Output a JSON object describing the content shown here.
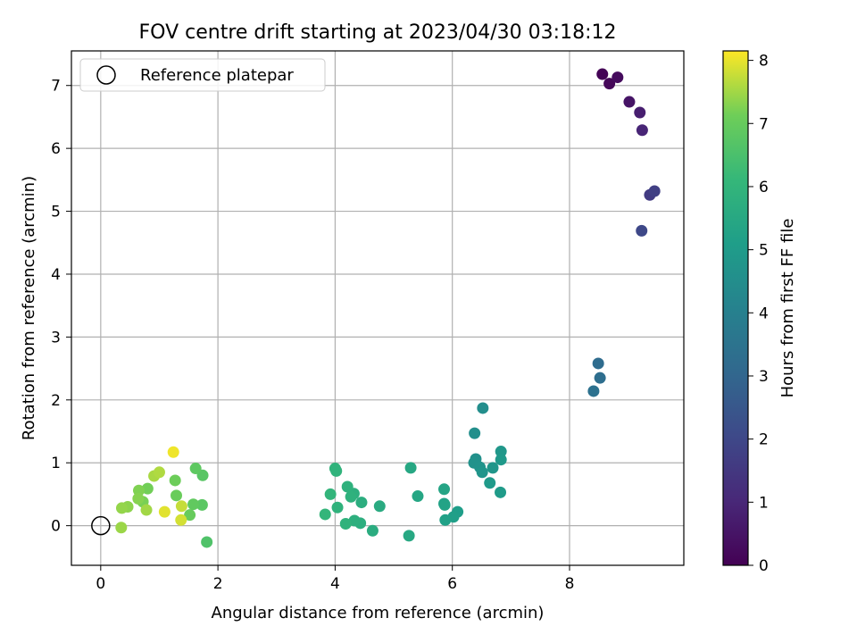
{
  "chart_data": {
    "type": "scatter",
    "title": "FOV centre drift starting at 2023/04/30 03:18:12",
    "xlabel": "Angular distance from reference (arcmin)",
    "ylabel": "Rotation from reference (arcmin)",
    "xlim": [
      -0.5,
      9.95
    ],
    "ylim": [
      -0.63,
      7.55
    ],
    "xticks": [
      0,
      2,
      4,
      6,
      8
    ],
    "yticks": [
      0,
      1,
      2,
      3,
      4,
      5,
      6,
      7
    ],
    "grid": true,
    "legend": {
      "placement": "top-left",
      "entries": [
        "Reference platepar"
      ]
    },
    "reference_point": {
      "x": 0,
      "y": 0,
      "label": "Reference platepar"
    },
    "colorbar": {
      "label": "Hours from first FF file",
      "colormap": "viridis",
      "range": [
        0,
        8.15
      ],
      "ticks": [
        0,
        1,
        2,
        3,
        4,
        5,
        6,
        7,
        8
      ]
    },
    "points": [
      {
        "x": 8.56,
        "y": 7.18,
        "t": 0.05
      },
      {
        "x": 8.68,
        "y": 7.03,
        "t": 0.15
      },
      {
        "x": 8.82,
        "y": 7.13,
        "t": 0.25
      },
      {
        "x": 9.02,
        "y": 6.74,
        "t": 0.5
      },
      {
        "x": 9.2,
        "y": 6.57,
        "t": 0.75
      },
      {
        "x": 9.24,
        "y": 6.29,
        "t": 0.95
      },
      {
        "x": 9.37,
        "y": 5.26,
        "t": 1.6
      },
      {
        "x": 9.45,
        "y": 5.32,
        "t": 1.75
      },
      {
        "x": 9.23,
        "y": 4.69,
        "t": 2.0
      },
      {
        "x": 8.49,
        "y": 2.58,
        "t": 3.2
      },
      {
        "x": 8.52,
        "y": 2.35,
        "t": 3.3
      },
      {
        "x": 8.41,
        "y": 2.14,
        "t": 3.4
      },
      {
        "x": 6.52,
        "y": 1.87,
        "t": 4.5
      },
      {
        "x": 6.38,
        "y": 1.47,
        "t": 4.55
      },
      {
        "x": 6.4,
        "y": 1.06,
        "t": 4.6
      },
      {
        "x": 6.37,
        "y": 1.0,
        "t": 4.65
      },
      {
        "x": 6.47,
        "y": 0.93,
        "t": 4.7
      },
      {
        "x": 6.51,
        "y": 0.85,
        "t": 4.75
      },
      {
        "x": 6.69,
        "y": 0.92,
        "t": 4.8
      },
      {
        "x": 6.83,
        "y": 1.18,
        "t": 4.85
      },
      {
        "x": 6.83,
        "y": 1.05,
        "t": 4.9
      },
      {
        "x": 6.64,
        "y": 0.68,
        "t": 4.95
      },
      {
        "x": 6.82,
        "y": 0.53,
        "t": 5.0
      },
      {
        "x": 6.09,
        "y": 0.22,
        "t": 5.1
      },
      {
        "x": 6.02,
        "y": 0.14,
        "t": 5.15
      },
      {
        "x": 5.88,
        "y": 0.09,
        "t": 5.2
      },
      {
        "x": 5.86,
        "y": 0.35,
        "t": 5.25
      },
      {
        "x": 5.87,
        "y": 0.33,
        "t": 5.3
      },
      {
        "x": 5.86,
        "y": 0.58,
        "t": 5.35
      },
      {
        "x": 5.41,
        "y": 0.47,
        "t": 5.4
      },
      {
        "x": 5.29,
        "y": 0.92,
        "t": 5.45
      },
      {
        "x": 5.26,
        "y": -0.16,
        "t": 5.5
      },
      {
        "x": 4.76,
        "y": 0.31,
        "t": 5.6
      },
      {
        "x": 4.64,
        "y": -0.08,
        "t": 5.65
      },
      {
        "x": 4.45,
        "y": 0.37,
        "t": 5.7
      },
      {
        "x": 4.43,
        "y": 0.04,
        "t": 5.75
      },
      {
        "x": 4.33,
        "y": 0.08,
        "t": 5.8
      },
      {
        "x": 4.32,
        "y": 0.51,
        "t": 5.8
      },
      {
        "x": 4.27,
        "y": 0.46,
        "t": 5.85
      },
      {
        "x": 4.21,
        "y": 0.62,
        "t": 5.85
      },
      {
        "x": 4.18,
        "y": 0.03,
        "t": 5.9
      },
      {
        "x": 4.04,
        "y": 0.29,
        "t": 5.9
      },
      {
        "x": 4.02,
        "y": 0.87,
        "t": 5.95
      },
      {
        "x": 4.0,
        "y": 0.91,
        "t": 5.95
      },
      {
        "x": 3.92,
        "y": 0.5,
        "t": 6.0
      },
      {
        "x": 3.83,
        "y": 0.18,
        "t": 6.05
      },
      {
        "x": 1.81,
        "y": -0.26,
        "t": 6.6
      },
      {
        "x": 1.74,
        "y": 0.8,
        "t": 6.75
      },
      {
        "x": 1.73,
        "y": 0.33,
        "t": 6.8
      },
      {
        "x": 1.62,
        "y": 0.91,
        "t": 6.85
      },
      {
        "x": 1.58,
        "y": 0.34,
        "t": 6.9
      },
      {
        "x": 1.52,
        "y": 0.17,
        "t": 7.0
      },
      {
        "x": 1.29,
        "y": 0.48,
        "t": 7.05
      },
      {
        "x": 1.27,
        "y": 0.72,
        "t": 7.1
      },
      {
        "x": 0.8,
        "y": 0.59,
        "t": 7.15
      },
      {
        "x": 0.72,
        "y": 0.38,
        "t": 7.2
      },
      {
        "x": 0.65,
        "y": 0.56,
        "t": 7.25
      },
      {
        "x": 0.64,
        "y": 0.43,
        "t": 7.3
      },
      {
        "x": 0.46,
        "y": 0.3,
        "t": 7.35
      },
      {
        "x": 0.36,
        "y": 0.28,
        "t": 7.4
      },
      {
        "x": 0.35,
        "y": -0.03,
        "t": 7.45
      },
      {
        "x": 0.78,
        "y": 0.25,
        "t": 7.5
      },
      {
        "x": 0.91,
        "y": 0.79,
        "t": 7.55
      },
      {
        "x": 1.0,
        "y": 0.85,
        "t": 7.6
      },
      {
        "x": 1.38,
        "y": 0.31,
        "t": 7.75
      },
      {
        "x": 1.37,
        "y": 0.09,
        "t": 7.85
      },
      {
        "x": 1.09,
        "y": 0.22,
        "t": 7.95
      },
      {
        "x": 1.24,
        "y": 1.17,
        "t": 8.05
      }
    ]
  }
}
